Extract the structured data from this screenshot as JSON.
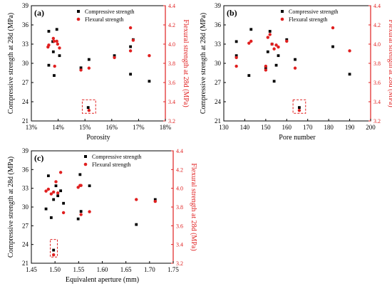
{
  "chart_data": [
    {
      "type": "scatter",
      "panel_label": "(a)",
      "xlabel": "Porosity",
      "ylabel": "Compressive strength at 28d (MPa)",
      "y2label": "Flexural strength at 28d (MPa)",
      "xlim": [
        13,
        18
      ],
      "ylim": [
        21,
        39
      ],
      "y2lim": [
        3.2,
        4.4
      ],
      "xticks": [
        "13%",
        "14%",
        "15%",
        "16%",
        "17%",
        "18%"
      ],
      "xtick_values": [
        13,
        14,
        15,
        16,
        17,
        18
      ],
      "yticks": [
        "21",
        "24",
        "27",
        "30",
        "33",
        "36",
        "39"
      ],
      "y2ticks": [
        "3.2",
        "3.4",
        "3.6",
        "3.8",
        "4.0",
        "4.2",
        "4.4"
      ],
      "legend": {
        "position": "top-center",
        "entries": [
          "Compressive strength",
          "Flexural strength"
        ]
      },
      "series": [
        {
          "name": "Compressive strength",
          "axis": "left",
          "color": "#000000",
          "marker": "square",
          "points": [
            [
              13.65,
              35.0
            ],
            [
              13.65,
              29.7
            ],
            [
              13.8,
              33.4
            ],
            [
              13.82,
              31.8
            ],
            [
              13.85,
              28.1
            ],
            [
              13.95,
              35.3
            ],
            [
              14.05,
              31.2
            ],
            [
              14.85,
              29.3
            ],
            [
              15.15,
              30.6
            ],
            [
              15.12,
              23.1
            ],
            [
              16.1,
              31.2
            ],
            [
              16.7,
              32.6
            ],
            [
              16.7,
              28.3
            ],
            [
              16.8,
              33.7
            ],
            [
              17.4,
              27.2
            ]
          ]
        },
        {
          "name": "Flexural strength",
          "axis": "right",
          "color": "#e02020",
          "marker": "circle",
          "points": [
            [
              13.62,
              3.97
            ],
            [
              13.65,
              3.99
            ],
            [
              13.82,
              4.06
            ],
            [
              13.85,
              4.03
            ],
            [
              13.87,
              3.77
            ],
            [
              13.95,
              4.03
            ],
            [
              13.98,
              4.0
            ],
            [
              14.05,
              3.96
            ],
            [
              14.85,
              3.73
            ],
            [
              15.15,
              3.75
            ],
            [
              15.15,
              3.31
            ],
            [
              16.1,
              3.86
            ],
            [
              16.7,
              4.17
            ],
            [
              16.7,
              3.93
            ],
            [
              16.8,
              4.04
            ],
            [
              17.4,
              3.88
            ]
          ]
        }
      ],
      "highlight_box": {
        "x": [
          14.9,
          15.4
        ],
        "y": [
          22.2,
          24.3
        ]
      }
    },
    {
      "type": "scatter",
      "panel_label": "(b)",
      "xlabel": "Pore number",
      "ylabel": "Compressive strength at 28d (MPa)",
      "y2label": "Flexural strength at 28d (MPa)",
      "xlim": [
        130,
        200
      ],
      "ylim": [
        21,
        39
      ],
      "y2lim": [
        3.2,
        4.4
      ],
      "xticks": [
        "130",
        "140",
        "150",
        "160",
        "170",
        "180",
        "190",
        "200"
      ],
      "xtick_values": [
        130,
        140,
        150,
        160,
        170,
        180,
        190,
        200
      ],
      "yticks": [
        "21",
        "24",
        "27",
        "30",
        "33",
        "36",
        "39"
      ],
      "y2ticks": [
        "3.2",
        "3.4",
        "3.6",
        "3.8",
        "4.0",
        "4.2",
        "4.4"
      ],
      "legend": {
        "position": "top-right",
        "entries": [
          "Compressive strength",
          "Flexural strength"
        ]
      },
      "series": [
        {
          "name": "Compressive strength",
          "axis": "left",
          "color": "#000000",
          "marker": "square",
          "points": [
            [
              136,
              33.4
            ],
            [
              136,
              31.2
            ],
            [
              142,
              28.1
            ],
            [
              143,
              35.3
            ],
            [
              150,
              29.3
            ],
            [
              151,
              31.8
            ],
            [
              152,
              35.0
            ],
            [
              153,
              33.0
            ],
            [
              154,
              27.2
            ],
            [
              155,
              29.7
            ],
            [
              156,
              31.2
            ],
            [
              160,
              33.7
            ],
            [
              164,
              30.6
            ],
            [
              166,
              23.1
            ],
            [
              182,
              32.6
            ],
            [
              190,
              28.3
            ]
          ]
        },
        {
          "name": "Flexural strength",
          "axis": "right",
          "color": "#e02020",
          "marker": "circle",
          "points": [
            [
              136,
              3.86
            ],
            [
              136,
              3.77
            ],
            [
              142,
              4.01
            ],
            [
              143,
              4.03
            ],
            [
              150,
              3.77
            ],
            [
              150,
              3.73
            ],
            [
              151,
              4.07
            ],
            [
              152,
              4.1
            ],
            [
              153,
              4.0
            ],
            [
              154,
              3.95
            ],
            [
              155,
              3.99
            ],
            [
              156,
              3.97
            ],
            [
              160,
              4.03
            ],
            [
              164,
              3.75
            ],
            [
              166,
              3.31
            ],
            [
              182,
              4.17
            ],
            [
              190,
              3.93
            ]
          ]
        }
      ],
      "highlight_box": {
        "x": [
          163,
          169
        ],
        "y": [
          22.2,
          24.3
        ]
      }
    },
    {
      "type": "scatter",
      "panel_label": "(c)",
      "xlabel": "Equivalent aperture (mm)",
      "ylabel": "Compressive strength at 28d (MPa)",
      "y2label": "Flexural strength at 28d (MPa)",
      "xlim": [
        1.45,
        1.75
      ],
      "ylim": [
        21,
        39
      ],
      "y2lim": [
        3.2,
        4.4
      ],
      "xticks": [
        "1.45",
        "1.50",
        "1.55",
        "1.60",
        "1.65",
        "1.70",
        "1.75"
      ],
      "xtick_values": [
        1.45,
        1.5,
        1.55,
        1.6,
        1.65,
        1.7,
        1.75
      ],
      "yticks": [
        "21",
        "24",
        "27",
        "30",
        "33",
        "36",
        "39"
      ],
      "y2ticks": [
        "3.2",
        "3.4",
        "3.6",
        "3.8",
        "4.0",
        "4.2",
        "4.4"
      ],
      "legend": {
        "position": "top-right",
        "entries": [
          "Compressive strength",
          "Flexural strength"
        ]
      },
      "series": [
        {
          "name": "Compressive strength",
          "axis": "left",
          "color": "#000000",
          "marker": "square",
          "points": [
            [
              1.481,
              29.7
            ],
            [
              1.486,
              35.0
            ],
            [
              1.492,
              28.3
            ],
            [
              1.497,
              31.2
            ],
            [
              1.497,
              23.1
            ],
            [
              1.502,
              33.4
            ],
            [
              1.506,
              31.8
            ],
            [
              1.512,
              32.6
            ],
            [
              1.518,
              30.6
            ],
            [
              1.549,
              28.1
            ],
            [
              1.553,
              35.2
            ],
            [
              1.555,
              29.3
            ],
            [
              1.573,
              33.4
            ],
            [
              1.672,
              27.2
            ],
            [
              1.712,
              31.2
            ]
          ]
        },
        {
          "name": "Flexural strength",
          "axis": "right",
          "color": "#e02020",
          "marker": "circle",
          "points": [
            [
              1.481,
              3.97
            ],
            [
              1.486,
              3.99
            ],
            [
              1.492,
              3.94
            ],
            [
              1.497,
              3.29
            ],
            [
              1.497,
              3.96
            ],
            [
              1.502,
              4.07
            ],
            [
              1.506,
              3.95
            ],
            [
              1.512,
              4.17
            ],
            [
              1.518,
              3.74
            ],
            [
              1.549,
              4.01
            ],
            [
              1.553,
              4.03
            ],
            [
              1.555,
              4.03
            ],
            [
              1.555,
              3.72
            ],
            [
              1.573,
              3.75
            ],
            [
              1.672,
              3.88
            ],
            [
              1.712,
              3.86
            ]
          ]
        }
      ],
      "highlight_box": {
        "x": [
          1.49,
          1.505
        ],
        "y": [
          22.0,
          24.8
        ]
      }
    }
  ]
}
